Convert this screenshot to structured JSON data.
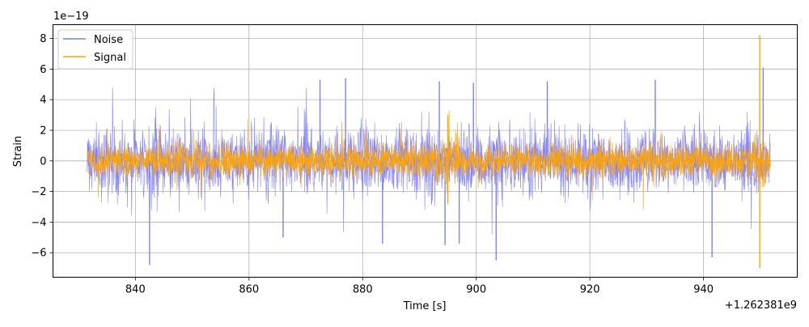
{
  "chart_data": {
    "type": "line",
    "xlabel": "Time [s]",
    "ylabel": "Strain",
    "y_scale_label": "1e−19",
    "x_offset_label": "+1.262381e9",
    "xlim": [
      825.5,
      956.5
    ],
    "ylim": [
      -7.6,
      8.9
    ],
    "x_ticks": [
      840,
      860,
      880,
      900,
      920,
      940
    ],
    "x_tick_labels": [
      "840",
      "860",
      "880",
      "900",
      "920",
      "940"
    ],
    "y_ticks": [
      -6,
      -4,
      -2,
      0,
      2,
      4,
      6,
      8
    ],
    "y_tick_labels": [
      "−6",
      "−4",
      "−2",
      "0",
      "2",
      "4",
      "6",
      "8"
    ],
    "grid": true,
    "legend_position": "top-left",
    "series": [
      {
        "name": "Noise",
        "color": "#7f7fff",
        "x_range": [
          831.5,
          951.8
        ],
        "typical_band": [
          -2.0,
          2.0
        ],
        "spikes": [
          {
            "x": 842.5,
            "y": -6.8
          },
          {
            "x": 866.0,
            "y": -5.0
          },
          {
            "x": 872.5,
            "y": 5.3
          },
          {
            "x": 877.0,
            "y": 5.4
          },
          {
            "x": 883.5,
            "y": -5.4
          },
          {
            "x": 893.5,
            "y": 5.2
          },
          {
            "x": 894.5,
            "y": -5.5
          },
          {
            "x": 897.0,
            "y": -5.4
          },
          {
            "x": 899.5,
            "y": 5.1
          },
          {
            "x": 903.5,
            "y": -6.5
          },
          {
            "x": 912.5,
            "y": 5.2
          },
          {
            "x": 931.5,
            "y": 5.3
          },
          {
            "x": 941.5,
            "y": -6.3
          },
          {
            "x": 950.5,
            "y": 6.1
          }
        ]
      },
      {
        "name": "Signal",
        "color": "#ffa500",
        "x_range": [
          831.5,
          951.8
        ],
        "typical_band": [
          -1.3,
          1.3
        ],
        "peaks": [
          {
            "x": 895.0,
            "y": 3.0
          },
          {
            "x": 895.0,
            "y": -2.8
          },
          {
            "x": 949.9,
            "y": 8.2
          },
          {
            "x": 949.9,
            "y": -7.0
          }
        ]
      }
    ]
  }
}
